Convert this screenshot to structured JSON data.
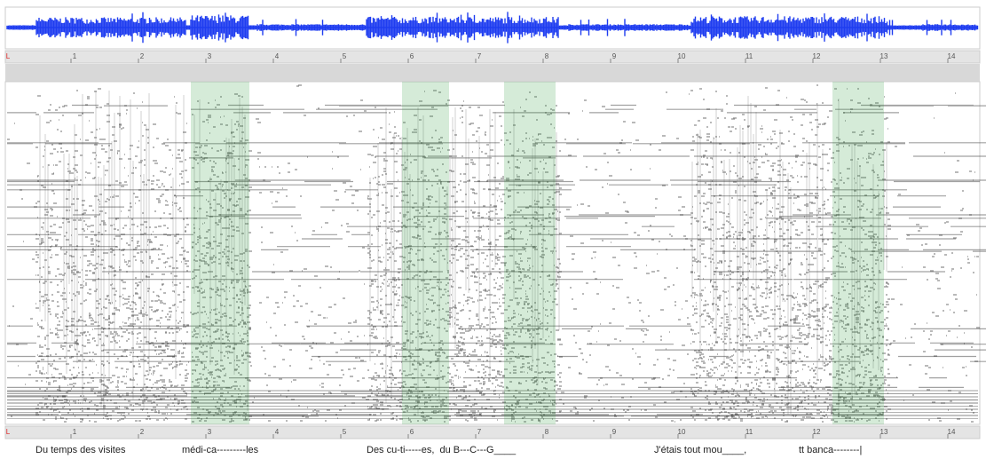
{
  "ruler": {
    "marker": "L",
    "ticks": [
      1,
      2,
      3,
      4,
      5,
      6,
      7,
      8,
      9,
      10,
      11,
      12,
      13,
      14
    ]
  },
  "captions": [
    "Du temps des visites",
    "médi-ca---------les",
    "Des cu-ti-----es,  du B---C---G____",
    "J'étais tout mou____,",
    "tt banca--------|"
  ]
}
